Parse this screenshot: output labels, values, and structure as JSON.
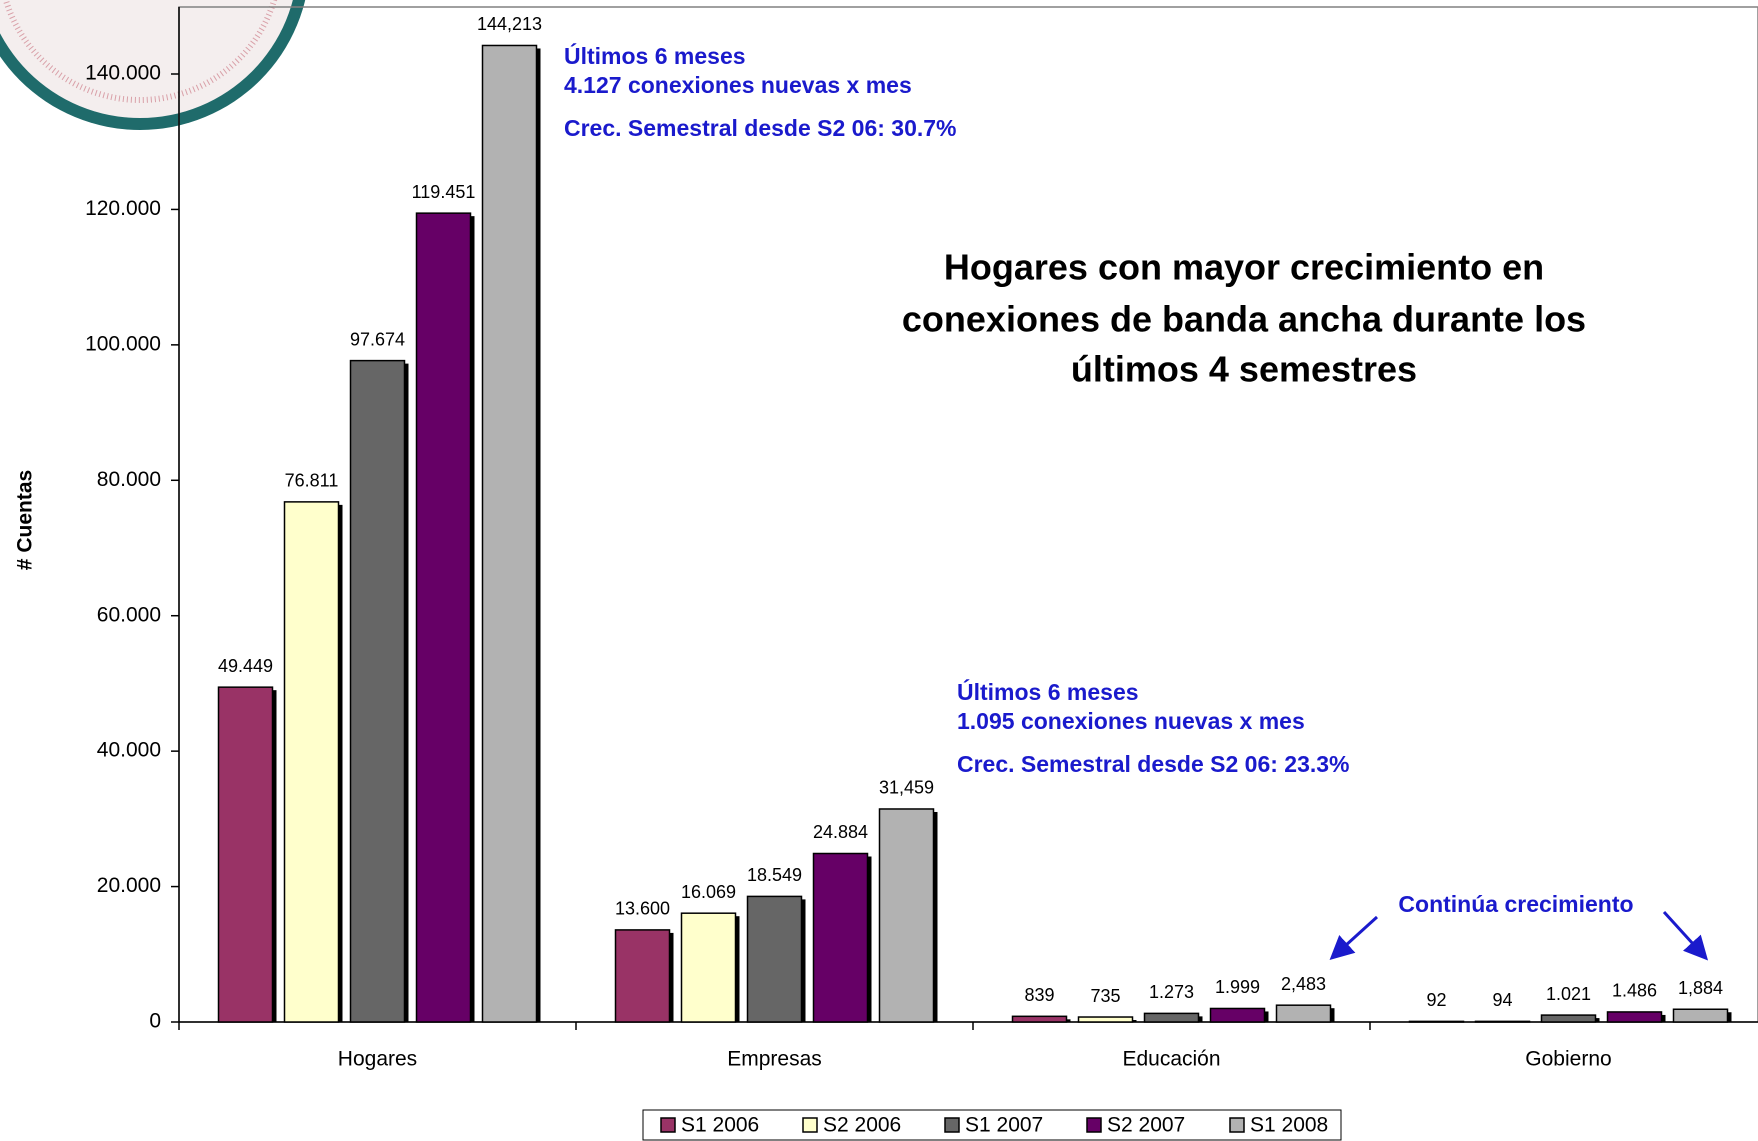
{
  "chart_data": {
    "type": "bar",
    "title": [
      "Hogares con mayor crecimiento en",
      "conexiones de banda ancha durante los",
      "últimos 4 semestres"
    ],
    "y_label": "# Cuentas",
    "categories": [
      "Hogares",
      "Empresas",
      "Educación",
      "Gobierno"
    ],
    "series": [
      {
        "name": "S1 2006",
        "color": "#993366",
        "values": [
          49449,
          13600,
          839,
          92
        ],
        "value_labels": [
          "49.449",
          "13.600",
          "839",
          "92"
        ]
      },
      {
        "name": "S2 2006",
        "color": "#FFFFCC",
        "values": [
          76811,
          16069,
          735,
          94
        ],
        "value_labels": [
          "76.811",
          "16.069",
          "735",
          "94"
        ]
      },
      {
        "name": "S1 2007",
        "color": "#666666",
        "values": [
          97674,
          18549,
          1273,
          1021
        ],
        "value_labels": [
          "97.674",
          "18.549",
          "1.273",
          "1.021"
        ]
      },
      {
        "name": "S2 2007",
        "color": "#660066",
        "values": [
          119451,
          24884,
          1999,
          1486
        ],
        "value_labels": [
          "119.451",
          "24.884",
          "1.999",
          "1.486"
        ]
      },
      {
        "name": "S1 2008",
        "color": "#B2B2B2",
        "values": [
          144213,
          31459,
          2483,
          1884
        ],
        "value_labels": [
          "144,213",
          "31,459",
          "2,483",
          "1,884"
        ]
      }
    ],
    "ylim": [
      0,
      156000
    ],
    "yticks": [
      0,
      {
        "value": 20000,
        "label": "20.000"
      },
      {
        "value": 40000,
        "label": "40.000"
      },
      {
        "value": 60000,
        "label": "60.000"
      },
      {
        "value": 80000,
        "label": "80.000"
      },
      {
        "value": 100000,
        "label": "100.000"
      },
      {
        "value": 120000,
        "label": "120.000"
      },
      {
        "value": 140000,
        "label": "140.000"
      }
    ],
    "grid": false,
    "legend": "bottom",
    "annotations": [
      "Últimos 6 meses",
      "4.127 conexiones nuevas x mes",
      "Crec. Semestral desde S2 06: 30.7%",
      "Últimos 6 meses",
      "1.095 conexiones nuevas x mes",
      "Crec. Semestral desde S2 06: 23.3%",
      "Continúa crecimiento"
    ]
  }
}
